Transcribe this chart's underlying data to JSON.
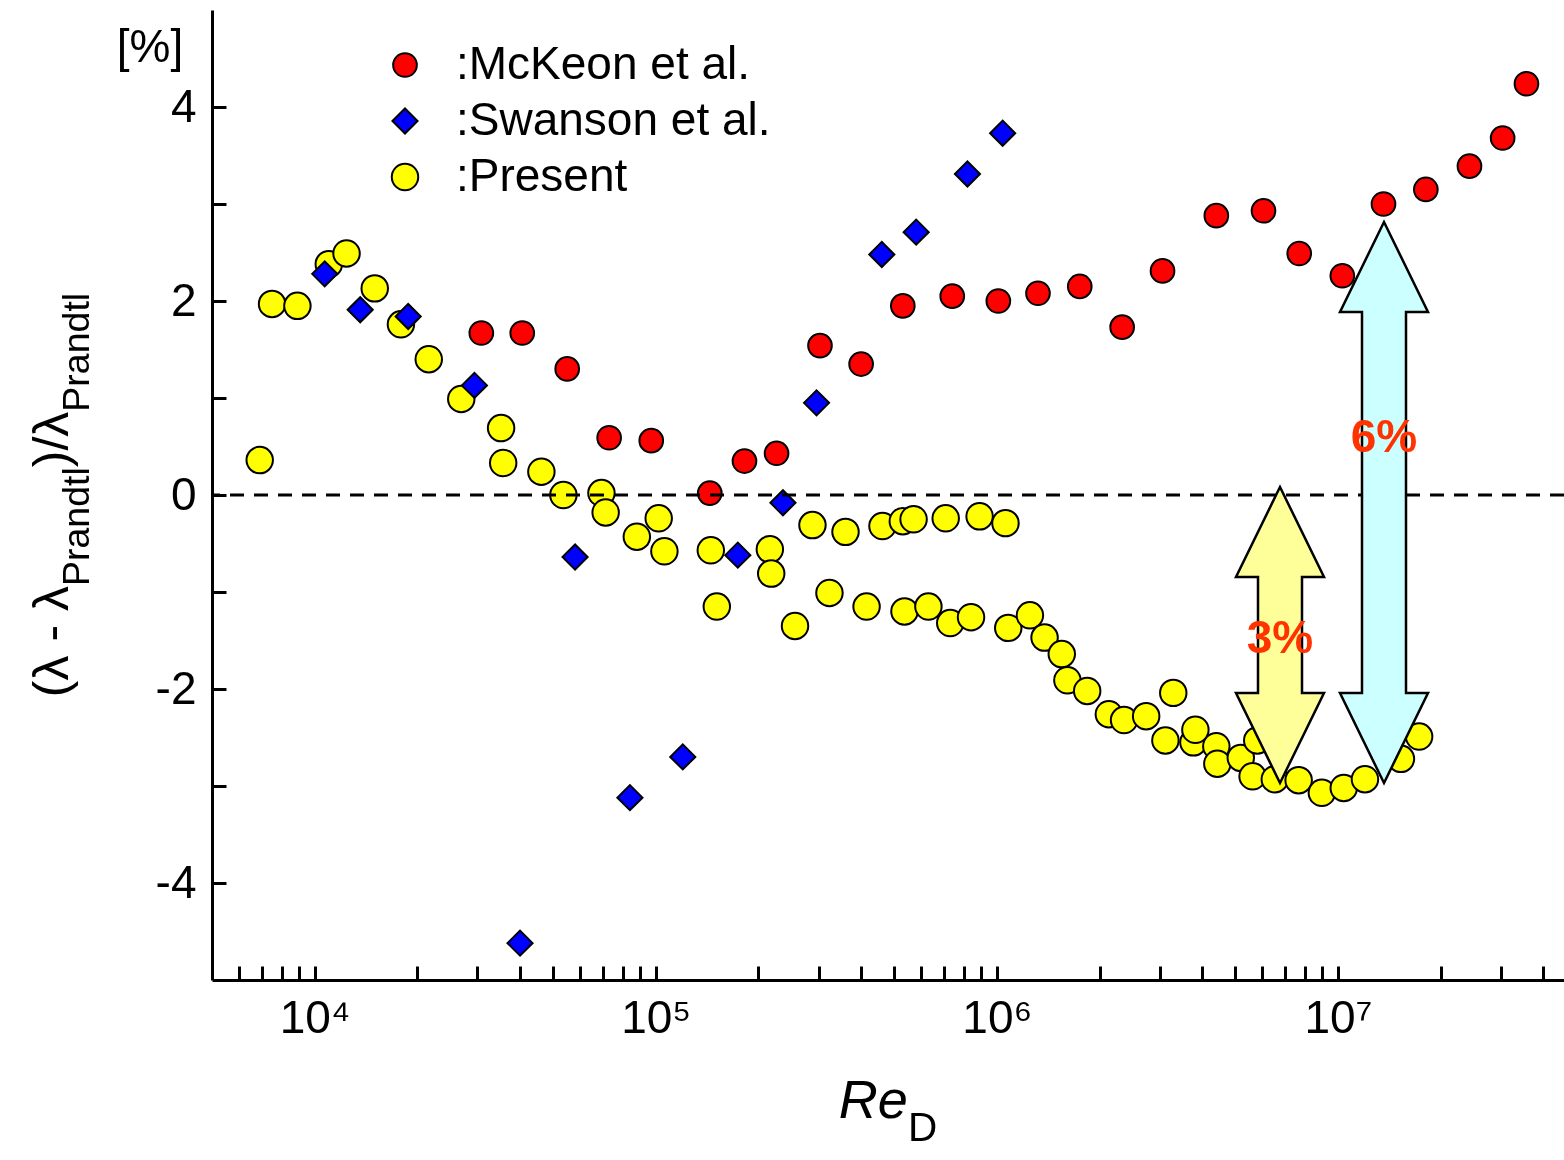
{
  "chart_data": {
    "type": "scatter",
    "xlabel": "Re$_{D}$",
    "ylabel": "(λ - λ$_{Prandtl}$)/λ$_{Prandtl}$",
    "log": "x",
    "legend": "top left",
    "grid": false,
    "xlim": [
      5000,
      46000000
    ],
    "ylim": [
      -5,
      5
    ],
    "xticks": [
      {
        "value": 6000,
        "label": null
      },
      {
        "value": 7000,
        "label": null
      },
      {
        "value": 8000,
        "label": null
      },
      {
        "value": 9000,
        "label": null
      },
      {
        "value": 10000,
        "label": "10⁴"
      },
      {
        "value": 20000,
        "label": null
      },
      {
        "value": 30000,
        "label": null
      },
      {
        "value": 40000,
        "label": null
      },
      {
        "value": 50000,
        "label": null
      },
      {
        "value": 60000,
        "label": null
      },
      {
        "value": 70000,
        "label": null
      },
      {
        "value": 80000,
        "label": null
      },
      {
        "value": 90000,
        "label": null
      },
      {
        "value": 100000,
        "label": "10⁵"
      },
      {
        "value": 200000,
        "label": null
      },
      {
        "value": 300000,
        "label": null
      },
      {
        "value": 400000,
        "label": null
      },
      {
        "value": 500000,
        "label": null
      },
      {
        "value": 600000,
        "label": null
      },
      {
        "value": 700000,
        "label": null
      },
      {
        "value": 800000,
        "label": null
      },
      {
        "value": 900000,
        "label": null
      },
      {
        "value": 1000000,
        "label": "10⁶"
      },
      {
        "value": 2000000,
        "label": null
      },
      {
        "value": 3000000,
        "label": null
      },
      {
        "value": 4000000,
        "label": null
      },
      {
        "value": 5000000,
        "label": null
      },
      {
        "value": 6000000,
        "label": null
      },
      {
        "value": 7000000,
        "label": null
      },
      {
        "value": 8000000,
        "label": null
      },
      {
        "value": 9000000,
        "label": null
      },
      {
        "value": 10000000,
        "label": "10⁷"
      },
      {
        "value": 20000000,
        "label": null
      },
      {
        "value": 30000000,
        "label": null
      },
      {
        "value": 40000000,
        "label": null
      }
    ],
    "yticks": [
      -4,
      {
        "value": -3,
        "label": null
      },
      -2,
      {
        "value": -1,
        "label": null
      },
      0,
      {
        "value": 1,
        "label": null
      },
      2,
      {
        "value": 3,
        "label": null
      },
      4
    ],
    "ref_lines": [
      {
        "axis": "y",
        "value": 0,
        "line_style": "dashed",
        "color": "#000000"
      }
    ],
    "annotations": [
      "[%]",
      "3%",
      "6%"
    ],
    "series": [
      {
        "name": ":McKeon et al.",
        "color": "#ff0000",
        "marker": "circle",
        "x": [
          30800,
          40600,
          55000,
          73000,
          97000,
          144000,
          182000,
          226000,
          303000,
          400000,
          530000,
          740000,
          1010000,
          1320000,
          1750000,
          2330000,
          3060000,
          4400000,
          6050000,
          7700000,
          10300000,
          13600000,
          18100000,
          24300000,
          30400000,
          35700000
        ],
        "values": [
          1.67,
          1.67,
          1.3,
          0.59,
          0.56,
          0.02,
          0.35,
          0.43,
          1.54,
          1.35,
          1.95,
          2.05,
          2.0,
          2.08,
          2.15,
          1.73,
          2.31,
          2.88,
          2.93,
          2.49,
          2.26,
          3.0,
          3.15,
          3.39,
          3.68,
          4.24
        ]
      },
      {
        "name": ":Swanson et al.",
        "color": "#0000ff",
        "marker": "diamond",
        "x": [
          10700,
          13600,
          18800,
          29400,
          40000,
          58000,
          84000,
          120000,
          174000,
          236000,
          296000,
          460000,
          580000,
          820000,
          1040000
        ],
        "values": [
          2.28,
          1.91,
          1.84,
          1.13,
          -4.62,
          -0.64,
          -3.12,
          -2.7,
          -0.62,
          -0.08,
          0.95,
          2.48,
          2.71,
          3.31,
          3.73
        ]
      },
      {
        "name": ":Present",
        "color": "#ffff00",
        "marker": "circle",
        "x": [
          6900,
          7500,
          8900,
          11000,
          12400,
          15000,
          17900,
          21600,
          26900,
          35200,
          35700,
          46200,
          53600,
          69300,
          71300,
          88000,
          102000,
          106000,
          145000,
          151000,
          216000,
          218000,
          256000,
          288000,
          323000,
          360000,
          415000,
          462000,
          530000,
          570000,
          536000,
          630000,
          708000,
          730000,
          840000,
          890000,
          1060000,
          1080000,
          1250000,
          1380000,
          1550000,
          1610000,
          1840000,
          2130000,
          2360000,
          2740000,
          3120000,
          3290000,
          3770000,
          3820000,
          4400000,
          4430000,
          5190000,
          5620000,
          5800000,
          6530000,
          7670000,
          8970000,
          10400000,
          12000000,
          15300000,
          17300000
        ],
        "values": [
          0.36,
          1.97,
          1.95,
          2.38,
          2.49,
          2.13,
          1.76,
          1.4,
          0.99,
          0.69,
          0.33,
          0.24,
          0.0,
          0.02,
          -0.18,
          -0.43,
          -0.24,
          -0.58,
          -0.57,
          -1.15,
          -0.56,
          -0.81,
          -1.35,
          -0.31,
          -1.01,
          -0.38,
          -1.15,
          -0.32,
          -0.27,
          -0.25,
          -1.2,
          -1.15,
          -0.24,
          -1.32,
          -1.26,
          -0.22,
          -0.29,
          -1.37,
          -1.24,
          -1.47,
          -1.64,
          -1.91,
          -2.02,
          -2.26,
          -2.32,
          -2.28,
          -2.53,
          -2.04,
          -2.55,
          -2.42,
          -2.59,
          -2.77,
          -2.71,
          -2.9,
          -2.53,
          -2.93,
          -2.94,
          -3.07,
          -3.02,
          -2.93,
          -2.72,
          -2.49
        ]
      }
    ]
  }
}
